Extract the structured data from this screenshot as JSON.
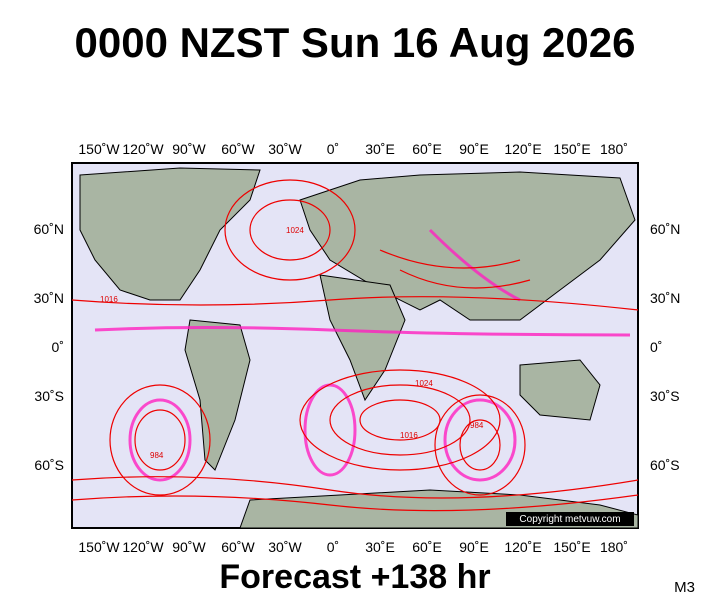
{
  "title": "0000 NZST Sun 16 Aug 2026",
  "longitude_labels": [
    "150˚W",
    "120˚W",
    "90˚W",
    "60˚W",
    "30˚W",
    "0˚",
    "30˚E",
    "60˚E",
    "90˚E",
    "120˚E",
    "150˚E",
    "180˚"
  ],
  "latitude_labels": [
    "60˚N",
    "30˚N",
    "0˚",
    "30˚S",
    "60˚S"
  ],
  "isobar_labels": [
    "1016",
    "1024",
    "1016",
    "984",
    "984",
    "1024"
  ],
  "copyright": "Copyright metvuw.com",
  "forecast": "Forecast +138 hr",
  "model": "M3"
}
